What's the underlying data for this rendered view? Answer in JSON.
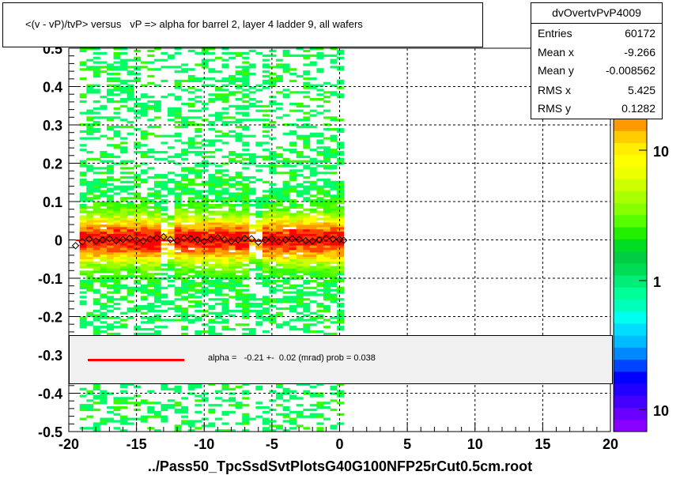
{
  "title": "<(v - vP)/tvP> versus   vP => alpha for barrel 2, layer 4 ladder 9, all wafers",
  "footer": "../Pass50_TpcSsdSvtPlotsG40G100NFP25rCut0.5cm.root",
  "stats": {
    "name": "dvOvertvPvP4009",
    "rows": [
      {
        "label": "Entries",
        "value": "60172"
      },
      {
        "label": "Mean x",
        "value": "-9.266"
      },
      {
        "label": "Mean y",
        "value": "-0.008562"
      },
      {
        "label": "RMS x",
        "value": "5.425"
      },
      {
        "label": "RMS y",
        "value": "0.1282"
      }
    ]
  },
  "fit": {
    "text": "alpha =   -0.21 +-  0.02 (mrad) prob = 0.038",
    "line_color": "#ff0000"
  },
  "chart_data": {
    "type": "heatmap",
    "xlim": [
      -20,
      20
    ],
    "ylim": [
      -0.5,
      0.5
    ],
    "x_ticks": [
      -20,
      -15,
      -10,
      -5,
      0,
      5,
      10,
      15,
      20
    ],
    "y_ticks": [
      -0.5,
      -0.4,
      -0.3,
      -0.2,
      -0.1,
      0,
      0.1,
      0.2,
      0.3,
      0.4,
      0.5
    ],
    "x_tick_labels": [
      "-20",
      "-15",
      "-10",
      "-5",
      "0",
      "5",
      "10",
      "15",
      "20"
    ],
    "y_tick_labels": [
      "-0.5",
      "-0.4",
      "-0.3",
      "-0.2",
      "-0.1",
      "0",
      "0.1",
      "0.2",
      "0.3",
      "0.4",
      "0.5"
    ],
    "grid": true,
    "occupied_x_range": [
      -19.2,
      0.2
    ],
    "gap_x_values": [
      -13.0,
      -6.3
    ],
    "profile_mean_y": -0.002,
    "colorbar": {
      "scale": "log",
      "tick_labels": [
        "10",
        "1",
        "10"
      ]
    },
    "profile_points_x": [
      -19.5,
      -19,
      -18.5,
      -18,
      -17.5,
      -17,
      -16.5,
      -16,
      -15.5,
      -15,
      -14.5,
      -14,
      -13.5,
      -13,
      -12.5,
      -12,
      -11.5,
      -11,
      -10.5,
      -10,
      -9.5,
      -9,
      -8.5,
      -8,
      -7.5,
      -7,
      -6.5,
      -6,
      -5.5,
      -5,
      -4.5,
      -4,
      -3.5,
      -3,
      -2.5,
      -2,
      -1.5,
      -1,
      -0.5,
      0,
      0.3
    ],
    "profile_points_y": [
      -0.015,
      -0.005,
      0.002,
      -0.003,
      0.0,
      0.003,
      -0.002,
      0.001,
      0.004,
      0.0,
      -0.003,
      0.002,
      0.005,
      0.008,
      0.001,
      -0.002,
      0.004,
      0.003,
      0.0,
      -0.004,
      0.002,
      0.006,
      0.001,
      -0.003,
      0.0,
      0.004,
      0.003,
      -0.006,
      0.0,
      0.002,
      -0.004,
      0.0,
      0.003,
      0.001,
      -0.002,
      -0.003,
      0.0,
      0.004,
      0.002,
      0.001,
      -0.001
    ]
  }
}
